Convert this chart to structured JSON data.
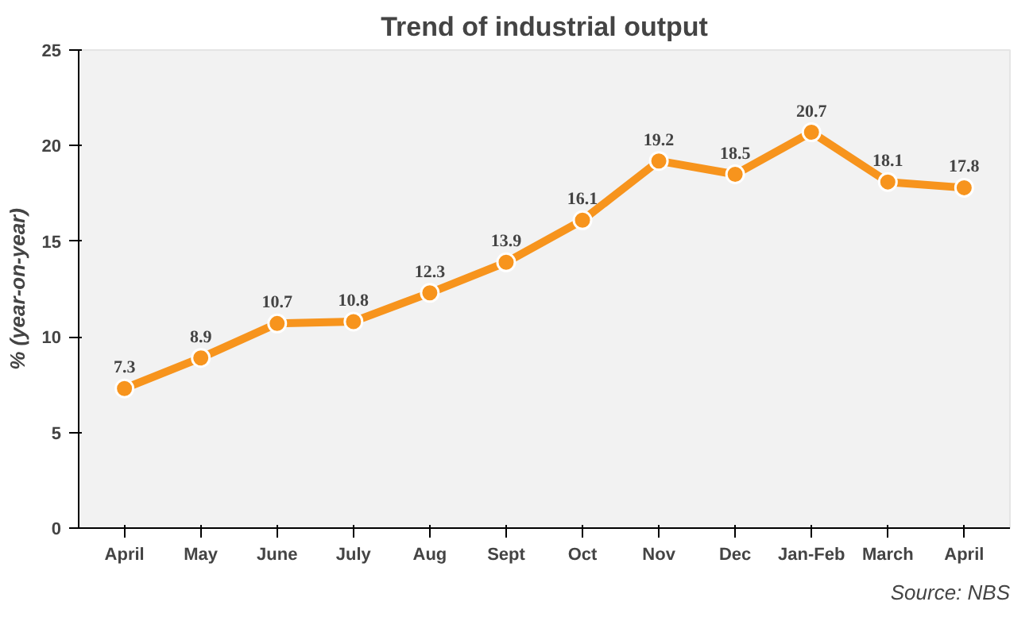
{
  "chart_data": {
    "type": "line",
    "title": "Trend of industrial output",
    "ylabel": "% (year-on-year)",
    "categories": [
      "April",
      "May",
      "June",
      "July",
      "Aug",
      "Sept",
      "Oct",
      "Nov",
      "Dec",
      "Jan-Feb",
      "March",
      "April"
    ],
    "series": [
      {
        "color": "#f7941d",
        "values": [
          7.3,
          8.9,
          10.7,
          10.8,
          12.3,
          13.9,
          16.1,
          19.2,
          18.5,
          20.7,
          18.1,
          17.8
        ]
      }
    ],
    "ylim": [
      0,
      25
    ],
    "yticks": [
      0,
      5,
      10,
      15,
      20,
      25
    ],
    "data_labels": true,
    "marker": "circle",
    "annotations": [
      "Source: NBS"
    ]
  }
}
